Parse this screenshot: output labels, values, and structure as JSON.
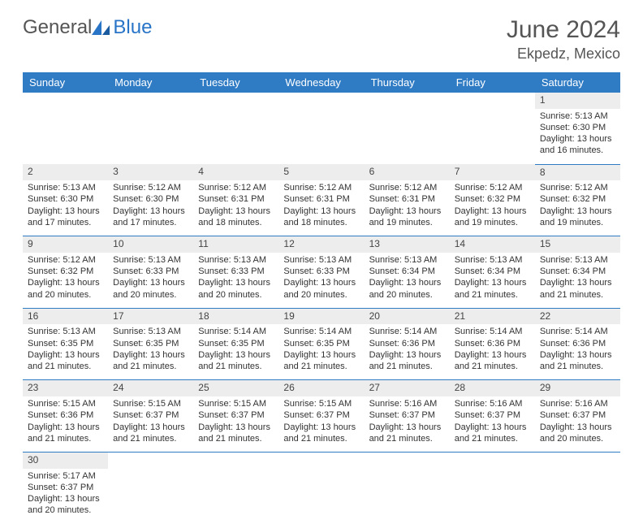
{
  "logo": {
    "text1": "General",
    "text2": "Blue"
  },
  "title": "June 2024",
  "location": "Ekpedz, Mexico",
  "colors": {
    "header_bg": "#2f7bc4",
    "header_text": "#ffffff",
    "daynum_bg": "#ededed",
    "border": "#2f7bc4",
    "text": "#333333",
    "title": "#555555"
  },
  "weekdays": [
    "Sunday",
    "Monday",
    "Tuesday",
    "Wednesday",
    "Thursday",
    "Friday",
    "Saturday"
  ],
  "weeks": [
    {
      "nums": [
        "",
        "",
        "",
        "",
        "",
        "",
        "1"
      ],
      "cells": [
        null,
        null,
        null,
        null,
        null,
        null,
        {
          "sr": "Sunrise: 5:13 AM",
          "ss": "Sunset: 6:30 PM",
          "d1": "Daylight: 13 hours",
          "d2": "and 16 minutes."
        }
      ]
    },
    {
      "nums": [
        "2",
        "3",
        "4",
        "5",
        "6",
        "7",
        "8"
      ],
      "cells": [
        {
          "sr": "Sunrise: 5:13 AM",
          "ss": "Sunset: 6:30 PM",
          "d1": "Daylight: 13 hours",
          "d2": "and 17 minutes."
        },
        {
          "sr": "Sunrise: 5:12 AM",
          "ss": "Sunset: 6:30 PM",
          "d1": "Daylight: 13 hours",
          "d2": "and 17 minutes."
        },
        {
          "sr": "Sunrise: 5:12 AM",
          "ss": "Sunset: 6:31 PM",
          "d1": "Daylight: 13 hours",
          "d2": "and 18 minutes."
        },
        {
          "sr": "Sunrise: 5:12 AM",
          "ss": "Sunset: 6:31 PM",
          "d1": "Daylight: 13 hours",
          "d2": "and 18 minutes."
        },
        {
          "sr": "Sunrise: 5:12 AM",
          "ss": "Sunset: 6:31 PM",
          "d1": "Daylight: 13 hours",
          "d2": "and 19 minutes."
        },
        {
          "sr": "Sunrise: 5:12 AM",
          "ss": "Sunset: 6:32 PM",
          "d1": "Daylight: 13 hours",
          "d2": "and 19 minutes."
        },
        {
          "sr": "Sunrise: 5:12 AM",
          "ss": "Sunset: 6:32 PM",
          "d1": "Daylight: 13 hours",
          "d2": "and 19 minutes."
        }
      ]
    },
    {
      "nums": [
        "9",
        "10",
        "11",
        "12",
        "13",
        "14",
        "15"
      ],
      "cells": [
        {
          "sr": "Sunrise: 5:12 AM",
          "ss": "Sunset: 6:32 PM",
          "d1": "Daylight: 13 hours",
          "d2": "and 20 minutes."
        },
        {
          "sr": "Sunrise: 5:13 AM",
          "ss": "Sunset: 6:33 PM",
          "d1": "Daylight: 13 hours",
          "d2": "and 20 minutes."
        },
        {
          "sr": "Sunrise: 5:13 AM",
          "ss": "Sunset: 6:33 PM",
          "d1": "Daylight: 13 hours",
          "d2": "and 20 minutes."
        },
        {
          "sr": "Sunrise: 5:13 AM",
          "ss": "Sunset: 6:33 PM",
          "d1": "Daylight: 13 hours",
          "d2": "and 20 minutes."
        },
        {
          "sr": "Sunrise: 5:13 AM",
          "ss": "Sunset: 6:34 PM",
          "d1": "Daylight: 13 hours",
          "d2": "and 20 minutes."
        },
        {
          "sr": "Sunrise: 5:13 AM",
          "ss": "Sunset: 6:34 PM",
          "d1": "Daylight: 13 hours",
          "d2": "and 21 minutes."
        },
        {
          "sr": "Sunrise: 5:13 AM",
          "ss": "Sunset: 6:34 PM",
          "d1": "Daylight: 13 hours",
          "d2": "and 21 minutes."
        }
      ]
    },
    {
      "nums": [
        "16",
        "17",
        "18",
        "19",
        "20",
        "21",
        "22"
      ],
      "cells": [
        {
          "sr": "Sunrise: 5:13 AM",
          "ss": "Sunset: 6:35 PM",
          "d1": "Daylight: 13 hours",
          "d2": "and 21 minutes."
        },
        {
          "sr": "Sunrise: 5:13 AM",
          "ss": "Sunset: 6:35 PM",
          "d1": "Daylight: 13 hours",
          "d2": "and 21 minutes."
        },
        {
          "sr": "Sunrise: 5:14 AM",
          "ss": "Sunset: 6:35 PM",
          "d1": "Daylight: 13 hours",
          "d2": "and 21 minutes."
        },
        {
          "sr": "Sunrise: 5:14 AM",
          "ss": "Sunset: 6:35 PM",
          "d1": "Daylight: 13 hours",
          "d2": "and 21 minutes."
        },
        {
          "sr": "Sunrise: 5:14 AM",
          "ss": "Sunset: 6:36 PM",
          "d1": "Daylight: 13 hours",
          "d2": "and 21 minutes."
        },
        {
          "sr": "Sunrise: 5:14 AM",
          "ss": "Sunset: 6:36 PM",
          "d1": "Daylight: 13 hours",
          "d2": "and 21 minutes."
        },
        {
          "sr": "Sunrise: 5:14 AM",
          "ss": "Sunset: 6:36 PM",
          "d1": "Daylight: 13 hours",
          "d2": "and 21 minutes."
        }
      ]
    },
    {
      "nums": [
        "23",
        "24",
        "25",
        "26",
        "27",
        "28",
        "29"
      ],
      "cells": [
        {
          "sr": "Sunrise: 5:15 AM",
          "ss": "Sunset: 6:36 PM",
          "d1": "Daylight: 13 hours",
          "d2": "and 21 minutes."
        },
        {
          "sr": "Sunrise: 5:15 AM",
          "ss": "Sunset: 6:37 PM",
          "d1": "Daylight: 13 hours",
          "d2": "and 21 minutes."
        },
        {
          "sr": "Sunrise: 5:15 AM",
          "ss": "Sunset: 6:37 PM",
          "d1": "Daylight: 13 hours",
          "d2": "and 21 minutes."
        },
        {
          "sr": "Sunrise: 5:15 AM",
          "ss": "Sunset: 6:37 PM",
          "d1": "Daylight: 13 hours",
          "d2": "and 21 minutes."
        },
        {
          "sr": "Sunrise: 5:16 AM",
          "ss": "Sunset: 6:37 PM",
          "d1": "Daylight: 13 hours",
          "d2": "and 21 minutes."
        },
        {
          "sr": "Sunrise: 5:16 AM",
          "ss": "Sunset: 6:37 PM",
          "d1": "Daylight: 13 hours",
          "d2": "and 21 minutes."
        },
        {
          "sr": "Sunrise: 5:16 AM",
          "ss": "Sunset: 6:37 PM",
          "d1": "Daylight: 13 hours",
          "d2": "and 20 minutes."
        }
      ]
    },
    {
      "nums": [
        "30",
        "",
        "",
        "",
        "",
        "",
        ""
      ],
      "cells": [
        {
          "sr": "Sunrise: 5:17 AM",
          "ss": "Sunset: 6:37 PM",
          "d1": "Daylight: 13 hours",
          "d2": "and 20 minutes."
        },
        null,
        null,
        null,
        null,
        null,
        null
      ]
    }
  ]
}
